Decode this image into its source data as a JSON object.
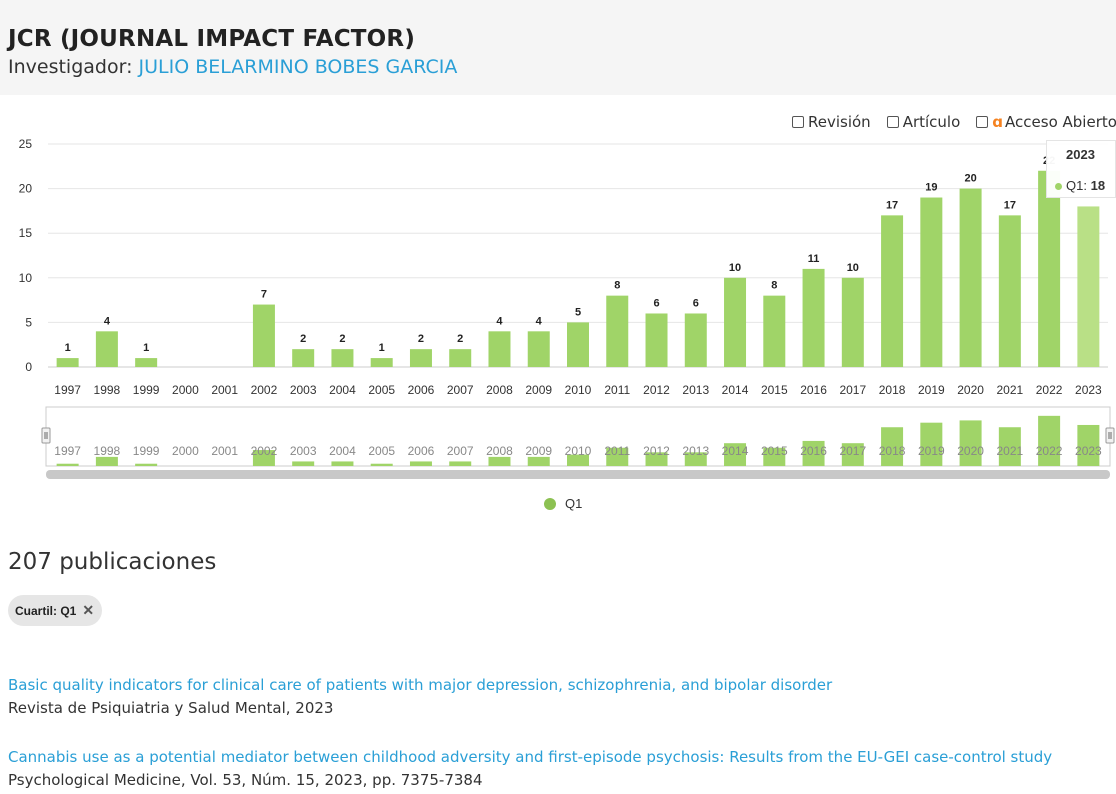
{
  "header": {
    "title": "JCR (JOURNAL IMPACT FACTOR)",
    "subtitle_prefix": "Investigador:",
    "researcher_name": "JULIO BELARMINO BOBES GARCIA"
  },
  "filters": [
    {
      "label": "Revisión",
      "checked": false
    },
    {
      "label": "Artículo",
      "checked": false
    },
    {
      "label": "Acceso Abierto",
      "checked": false,
      "icon": "open-access-icon"
    }
  ],
  "tooltip": {
    "year": "2023",
    "series": "Q1:",
    "value": "18"
  },
  "chart_data": {
    "type": "bar",
    "categories": [
      "1997",
      "1998",
      "1999",
      "2000",
      "2001",
      "2002",
      "2003",
      "2004",
      "2005",
      "2006",
      "2007",
      "2008",
      "2009",
      "2010",
      "2011",
      "2012",
      "2013",
      "2014",
      "2015",
      "2016",
      "2017",
      "2018",
      "2019",
      "2020",
      "2021",
      "2022",
      "2023"
    ],
    "series": [
      {
        "name": "Q1",
        "values": [
          1,
          4,
          1,
          0,
          0,
          7,
          2,
          2,
          1,
          2,
          2,
          4,
          4,
          5,
          8,
          6,
          6,
          10,
          8,
          11,
          10,
          17,
          19,
          20,
          17,
          22,
          18
        ],
        "color": "#a0d468"
      }
    ],
    "ylim": [
      0,
      25
    ],
    "yticks": [
      0,
      5,
      10,
      15,
      20,
      25
    ],
    "grid": true,
    "highlighted_category": "2023",
    "highlight_color": "#b9e086",
    "legend_position": "bottom"
  },
  "publications": {
    "count_label": "207 publicaciones",
    "active_filter": "Cuartil: Q1",
    "items": [
      {
        "title": "Basic quality indicators for clinical care of patients with major depression, schizophrenia, and bipolar disorder",
        "source": "Revista de Psiquiatria y Salud Mental, 2023"
      },
      {
        "title": "Cannabis use as a potential mediator between childhood adversity and first-episode psychosis: Results from the EU-GEI case-control study",
        "source": "Psychological Medicine, Vol. 53, Núm. 15, 2023, pp. 7375-7384"
      }
    ]
  },
  "colors": {
    "accent": "#2a9fd6",
    "bar": "#a0d468",
    "header_bg": "#f5f5f5",
    "open_access": "#f58220"
  }
}
